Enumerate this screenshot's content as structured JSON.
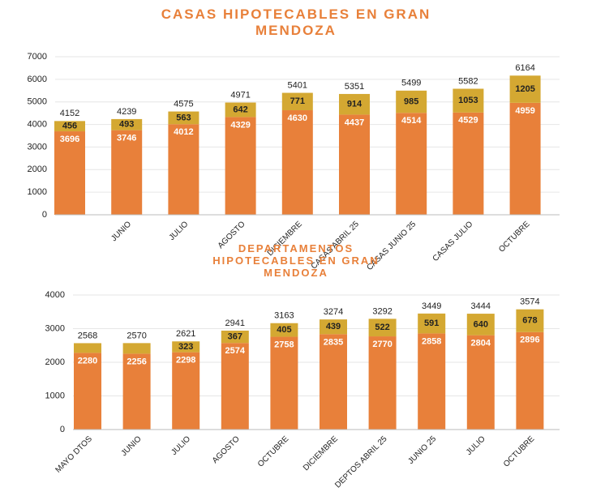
{
  "chart_data": [
    {
      "type": "stacked_bar",
      "title": "CASAS HIPOTECABLES EN GRAN MENDOZA",
      "categories": [
        null,
        "JUNIO",
        "JULIO",
        "AGOSTO",
        "DICIEMBRE",
        "CASAS ABRIL 25",
        "CASAS JUNIO 25",
        "CASAS JULIO",
        "OCTUBRE"
      ],
      "series": [
        {
          "color": "#e8803a",
          "values": [
            3696,
            3746,
            4012,
            4329,
            4630,
            4437,
            4514,
            4529,
            4959
          ]
        },
        {
          "color": "#d4a832",
          "values": [
            456,
            493,
            563,
            642,
            771,
            914,
            985,
            1053,
            1205
          ]
        }
      ],
      "totals": [
        4152,
        4239,
        4575,
        4971,
        5401,
        5351,
        5499,
        5582,
        6164
      ],
      "ylim": [
        0,
        7000
      ],
      "yticks": [
        0,
        1000,
        2000,
        3000,
        4000,
        5000,
        6000,
        7000
      ],
      "grid": true
    },
    {
      "type": "stacked_bar",
      "title": "DEPARTAMENTOS HIPOTECABLES EN GRAN MENDOZA",
      "categories": [
        "MAYO DTOS",
        "JUNIO",
        "JULIO",
        "AGOSTO",
        "OCTUBRE",
        "DICIEMBRE",
        "DEPTOS ABRIL 25",
        "JUNIO 25",
        "JULIO",
        "OCTUBRE"
      ],
      "series": [
        {
          "color": "#e8803a",
          "values": [
            2280,
            2256,
            2298,
            2574,
            2758,
            2835,
            2770,
            2858,
            2804,
            2896
          ]
        },
        {
          "color": "#d4a832",
          "values": [
            288,
            314,
            323,
            367,
            405,
            439,
            522,
            591,
            640,
            678
          ],
          "value_labels": [
            null,
            null,
            "323",
            "367",
            "405",
            "439",
            "522",
            "591",
            "640",
            "678"
          ]
        }
      ],
      "totals": [
        2568,
        2570,
        2621,
        2941,
        3163,
        3274,
        3292,
        3449,
        3444,
        3574
      ],
      "ylim": [
        0,
        4000
      ],
      "yticks": [
        0,
        1000,
        2000,
        3000,
        4000
      ],
      "grid": true
    }
  ]
}
